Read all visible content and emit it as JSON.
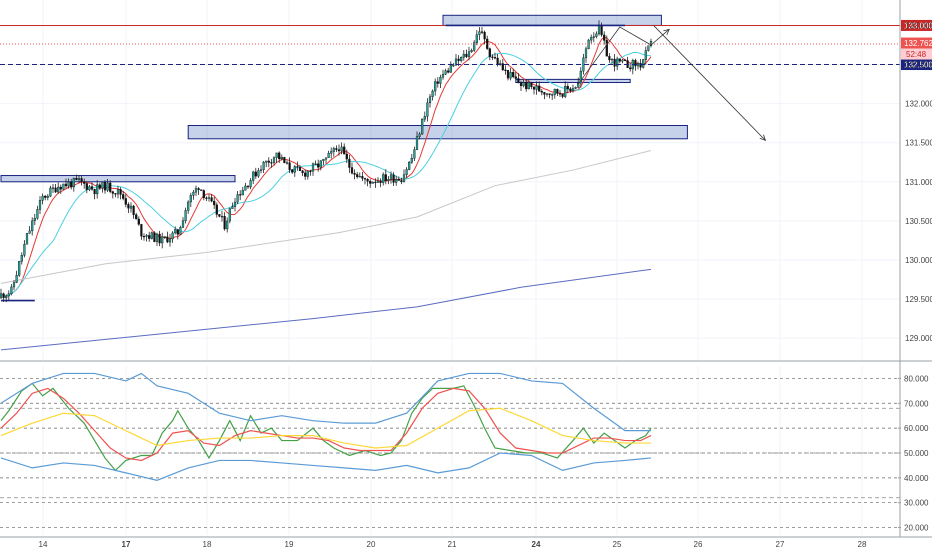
{
  "chart_data": [
    {
      "type": "candlestick",
      "title": "",
      "x_ticks": [
        "14",
        "17",
        "18",
        "19",
        "20",
        "21",
        "24",
        "25",
        "26",
        "27",
        "28"
      ],
      "bold_x_ticks": [
        "17",
        "24"
      ],
      "y_ticks": [
        129.0,
        129.5,
        130.0,
        130.5,
        131.0,
        131.5,
        132.0,
        132.5,
        133.0
      ],
      "y_tick_labels": [
        "129.000",
        "129.500",
        "130.000",
        "130.500",
        "131.000",
        "131.500",
        "132.000",
        "132.500",
        "133.000"
      ],
      "ylim": [
        128.72,
        133.3
      ],
      "grid": true,
      "ohlc_keypoints": [
        [
          0,
          129.55
        ],
        [
          4,
          129.6
        ],
        [
          10,
          130.3
        ],
        [
          16,
          130.8
        ],
        [
          22,
          130.95
        ],
        [
          30,
          131.0
        ],
        [
          36,
          130.9
        ],
        [
          40,
          130.95
        ],
        [
          46,
          130.85
        ],
        [
          50,
          130.65
        ],
        [
          54,
          130.35
        ],
        [
          62,
          130.25
        ],
        [
          68,
          130.35
        ],
        [
          72,
          130.75
        ],
        [
          76,
          130.95
        ],
        [
          80,
          130.75
        ],
        [
          86,
          130.45
        ],
        [
          90,
          130.8
        ],
        [
          94,
          130.95
        ],
        [
          100,
          131.2
        ],
        [
          106,
          131.35
        ],
        [
          110,
          131.2
        ],
        [
          116,
          131.1
        ],
        [
          124,
          131.25
        ],
        [
          130,
          131.45
        ],
        [
          134,
          131.2
        ],
        [
          140,
          131.0
        ],
        [
          148,
          131.05
        ],
        [
          154,
          131.05
        ],
        [
          158,
          131.3
        ],
        [
          164,
          132.0
        ],
        [
          168,
          132.3
        ],
        [
          174,
          132.5
        ],
        [
          180,
          132.65
        ],
        [
          184,
          132.95
        ],
        [
          188,
          132.65
        ],
        [
          194,
          132.4
        ],
        [
          200,
          132.25
        ],
        [
          210,
          132.15
        ],
        [
          216,
          132.15
        ],
        [
          222,
          132.25
        ],
        [
          226,
          132.85
        ],
        [
          230,
          132.95
        ],
        [
          234,
          132.55
        ],
        [
          240,
          132.5
        ],
        [
          246,
          132.5
        ],
        [
          250,
          132.75
        ]
      ],
      "reference_lines": [
        {
          "label": "133.000",
          "value": 133.0,
          "color": "#c62828",
          "style": "solid"
        },
        {
          "label": "132.762",
          "value": 132.762,
          "color": "#ef5350",
          "style": "dotted"
        },
        {
          "label": "132.500",
          "value": 132.5,
          "color": "#1a237e",
          "style": "dashed"
        }
      ],
      "countdown_label": "52:48",
      "zones": [
        {
          "x_from": 0,
          "x_to": 90,
          "low": 131.0,
          "high": 131.08
        },
        {
          "x_from": 72,
          "x_to": 264,
          "low": 131.55,
          "high": 131.72
        },
        {
          "x_from": 170,
          "x_to": 254,
          "low": 133.0,
          "high": 133.13
        },
        {
          "x_from": 198,
          "x_to": 242,
          "low": 132.27,
          "high": 132.31
        }
      ],
      "support_lines": [
        {
          "x_from": 0,
          "x_to": 13,
          "value": 129.48
        },
        {
          "x_from": 171,
          "x_to": 240,
          "value": 133.0
        }
      ],
      "projection_path": [
        [
          222,
          132.25
        ],
        [
          238,
          132.98
        ],
        [
          250,
          132.75
        ],
        [
          257,
          132.95
        ],
        [
          251,
          133.0
        ],
        [
          294,
          131.53
        ]
      ],
      "moving_averages": [
        {
          "name": "",
          "color": "#e53935",
          "period": 8
        },
        {
          "name": "",
          "color": "#4dd0e1",
          "period": 21
        },
        {
          "name": "",
          "color": "#c7c7c7",
          "points": [
            [
              0,
              129.7
            ],
            [
              40,
              129.95
            ],
            [
              80,
              130.1
            ],
            [
              130,
              130.35
            ],
            [
              160,
              130.55
            ],
            [
              190,
              130.95
            ],
            [
              220,
              131.15
            ],
            [
              250,
              131.4
            ]
          ]
        },
        {
          "name": "",
          "color": "#5c6bc0",
          "points": [
            [
              0,
              128.85
            ],
            [
              60,
              129.05
            ],
            [
              120,
              129.25
            ],
            [
              160,
              129.4
            ],
            [
              200,
              129.65
            ],
            [
              250,
              129.88
            ]
          ]
        }
      ]
    },
    {
      "type": "line",
      "title": "",
      "y_ticks": [
        20,
        30,
        40,
        50,
        60,
        70,
        80
      ],
      "y_tick_labels": [
        "20.000",
        "30.000",
        "40.000",
        "50.000",
        "60.000",
        "70.000",
        "80.000"
      ],
      "ylim": [
        17,
        85
      ],
      "dashed_levels": [
        32,
        50,
        68
      ],
      "series": [
        {
          "name": "",
          "color": "#43a047",
          "points": [
            [
              0,
              63
            ],
            [
              3,
              67
            ],
            [
              8,
              75
            ],
            [
              12,
              78
            ],
            [
              16,
              73
            ],
            [
              20,
              76
            ],
            [
              26,
              68
            ],
            [
              32,
              62
            ],
            [
              36,
              55
            ],
            [
              40,
              48
            ],
            [
              44,
              43
            ],
            [
              48,
              47
            ],
            [
              54,
              49
            ],
            [
              58,
              49
            ],
            [
              62,
              58
            ],
            [
              66,
              63
            ],
            [
              68,
              67
            ],
            [
              72,
              60
            ],
            [
              76,
              55
            ],
            [
              80,
              48
            ],
            [
              84,
              55
            ],
            [
              88,
              63
            ],
            [
              92,
              55
            ],
            [
              96,
              65
            ],
            [
              100,
              58
            ],
            [
              104,
              60
            ],
            [
              108,
              55
            ],
            [
              114,
              55
            ],
            [
              120,
              60
            ],
            [
              124,
              55
            ],
            [
              128,
              52
            ],
            [
              134,
              49
            ],
            [
              140,
              51
            ],
            [
              146,
              49
            ],
            [
              150,
              50
            ],
            [
              154,
              55
            ],
            [
              158,
              66
            ],
            [
              162,
              72
            ],
            [
              166,
              76
            ],
            [
              170,
              76
            ],
            [
              174,
              76
            ],
            [
              178,
              77
            ],
            [
              182,
              69
            ],
            [
              186,
              60
            ],
            [
              190,
              52
            ],
            [
              196,
              51
            ],
            [
              202,
              50
            ],
            [
              208,
              50
            ],
            [
              214,
              48
            ],
            [
              220,
              55
            ],
            [
              224,
              60
            ],
            [
              228,
              54
            ],
            [
              232,
              58
            ],
            [
              236,
              55
            ],
            [
              240,
              52
            ],
            [
              244,
              55
            ],
            [
              248,
              57
            ],
            [
              250,
              60
            ]
          ]
        },
        {
          "name": "",
          "color": "#ef5350",
          "points": [
            [
              0,
              60
            ],
            [
              6,
              66
            ],
            [
              12,
              74
            ],
            [
              18,
              76
            ],
            [
              24,
              72
            ],
            [
              30,
              66
            ],
            [
              36,
              59
            ],
            [
              42,
              52
            ],
            [
              48,
              48
            ],
            [
              54,
              47
            ],
            [
              60,
              50
            ],
            [
              66,
              58
            ],
            [
              72,
              59
            ],
            [
              78,
              54
            ],
            [
              84,
              53
            ],
            [
              90,
              57
            ],
            [
              96,
              59
            ],
            [
              102,
              58
            ],
            [
              108,
              57
            ],
            [
              114,
              56
            ],
            [
              120,
              56
            ],
            [
              126,
              55
            ],
            [
              132,
              52
            ],
            [
              138,
              51
            ],
            [
              144,
              51
            ],
            [
              150,
              51
            ],
            [
              156,
              58
            ],
            [
              162,
              68
            ],
            [
              168,
              74
            ],
            [
              174,
              76
            ],
            [
              180,
              75
            ],
            [
              186,
              68
            ],
            [
              192,
              58
            ],
            [
              198,
              52
            ],
            [
              204,
              51
            ],
            [
              210,
              50
            ],
            [
              216,
              50
            ],
            [
              222,
              53
            ],
            [
              228,
              56
            ],
            [
              234,
              56
            ],
            [
              240,
              55
            ],
            [
              246,
              55
            ],
            [
              250,
              57
            ]
          ]
        },
        {
          "name": "",
          "color": "#fdd835",
          "points": [
            [
              0,
              57
            ],
            [
              12,
              62
            ],
            [
              24,
              66
            ],
            [
              36,
              65
            ],
            [
              48,
              59
            ],
            [
              60,
              53
            ],
            [
              72,
              55
            ],
            [
              84,
              56
            ],
            [
              96,
              56
            ],
            [
              108,
              57
            ],
            [
              120,
              57
            ],
            [
              132,
              54
            ],
            [
              144,
              52
            ],
            [
              156,
              53
            ],
            [
              168,
              60
            ],
            [
              180,
              67
            ],
            [
              192,
              68
            ],
            [
              204,
              63
            ],
            [
              216,
              57
            ],
            [
              228,
              55
            ],
            [
              240,
              54
            ],
            [
              250,
              54
            ]
          ]
        },
        {
          "name": "",
          "color": "#5b9bd5",
          "points": [
            [
              0,
              70
            ],
            [
              12,
              78
            ],
            [
              24,
              82
            ],
            [
              36,
              82
            ],
            [
              48,
              79
            ],
            [
              54,
              82
            ],
            [
              60,
              77
            ],
            [
              72,
              74
            ],
            [
              84,
              66
            ],
            [
              96,
              63
            ],
            [
              108,
              65
            ],
            [
              120,
              63
            ],
            [
              132,
              62
            ],
            [
              144,
              62
            ],
            [
              156,
              66
            ],
            [
              168,
              79
            ],
            [
              180,
              82
            ],
            [
              192,
              82
            ],
            [
              204,
              79
            ],
            [
              216,
              78
            ],
            [
              228,
              68
            ],
            [
              240,
              59
            ],
            [
              250,
              59
            ]
          ]
        },
        {
          "name": "",
          "color": "#5b9bd5",
          "points": [
            [
              0,
              48
            ],
            [
              12,
              44
            ],
            [
              24,
              46
            ],
            [
              36,
              45
            ],
            [
              48,
              42
            ],
            [
              60,
              39
            ],
            [
              72,
              44
            ],
            [
              84,
              47
            ],
            [
              96,
              47
            ],
            [
              108,
              46
            ],
            [
              120,
              45
            ],
            [
              132,
              44
            ],
            [
              144,
              43
            ],
            [
              156,
              45
            ],
            [
              168,
              42
            ],
            [
              180,
              44
            ],
            [
              192,
              50
            ],
            [
              204,
              49
            ],
            [
              216,
              43
            ],
            [
              228,
              46
            ],
            [
              240,
              47
            ],
            [
              250,
              48
            ]
          ]
        }
      ]
    }
  ]
}
